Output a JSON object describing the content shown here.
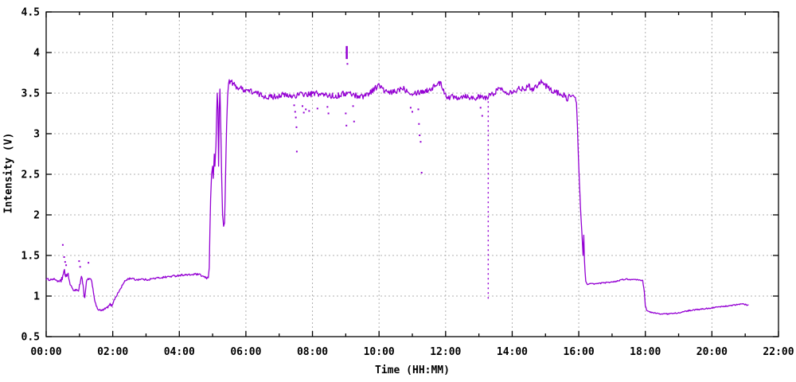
{
  "chart_data": {
    "type": "line",
    "title": "",
    "xlabel": "Time (HH:MM)",
    "ylabel": "Intensity (V)",
    "xlim_hours": [
      0,
      22
    ],
    "ylim": [
      0.5,
      4.5
    ],
    "grid": true,
    "legend": "none",
    "series_color": "#9400d3",
    "grid_color": "#b0b0b0",
    "border_color": "#000000",
    "x_ticks_major": [
      {
        "t": 0,
        "label": "00:00"
      },
      {
        "t": 2,
        "label": "02:00"
      },
      {
        "t": 4,
        "label": "04:00"
      },
      {
        "t": 6,
        "label": "06:00"
      },
      {
        "t": 8,
        "label": "08:00"
      },
      {
        "t": 10,
        "label": "10:00"
      },
      {
        "t": 12,
        "label": "12:00"
      },
      {
        "t": 14,
        "label": "14:00"
      },
      {
        "t": 16,
        "label": "16:00"
      },
      {
        "t": 18,
        "label": "18:00"
      },
      {
        "t": 20,
        "label": "20:00"
      },
      {
        "t": 22,
        "label": "22:00"
      }
    ],
    "x_ticks_minor": [
      1,
      3,
      5,
      7,
      9,
      11,
      13,
      15,
      17,
      19,
      21
    ],
    "y_ticks_major": [
      {
        "v": 0.5,
        "label": "0.5"
      },
      {
        "v": 1,
        "label": "1"
      },
      {
        "v": 1.5,
        "label": "1.5"
      },
      {
        "v": 2,
        "label": "2"
      },
      {
        "v": 2.5,
        "label": "2.5"
      },
      {
        "v": 3,
        "label": "3"
      },
      {
        "v": 3.5,
        "label": "3.5"
      },
      {
        "v": 4,
        "label": "4"
      },
      {
        "v": 4.5,
        "label": "4.5"
      }
    ],
    "main_series_anchors": [
      [
        0,
        1.21
      ],
      [
        0.1,
        1.2
      ],
      [
        0.2,
        1.21
      ],
      [
        0.3,
        1.2
      ],
      [
        0.38,
        1.17
      ],
      [
        0.45,
        1.2
      ],
      [
        0.5,
        1.25
      ],
      [
        0.55,
        1.28
      ],
      [
        0.62,
        1.26
      ],
      [
        0.68,
        1.22
      ],
      [
        0.72,
        1.15
      ],
      [
        0.78,
        1.09
      ],
      [
        0.85,
        1.07
      ],
      [
        0.92,
        1.08
      ],
      [
        0.97,
        1.06
      ],
      [
        1.0,
        1.12
      ],
      [
        1.04,
        1.21
      ],
      [
        1.08,
        1.22
      ],
      [
        1.11,
        1.15
      ],
      [
        1.14,
        1.0
      ],
      [
        1.16,
        0.97
      ],
      [
        1.18,
        1.05
      ],
      [
        1.21,
        1.18
      ],
      [
        1.26,
        1.21
      ],
      [
        1.32,
        1.21
      ],
      [
        1.37,
        1.18
      ],
      [
        1.42,
        1.05
      ],
      [
        1.47,
        0.92
      ],
      [
        1.52,
        0.86
      ],
      [
        1.58,
        0.83
      ],
      [
        1.65,
        0.82
      ],
      [
        1.72,
        0.83
      ],
      [
        1.8,
        0.85
      ],
      [
        1.87,
        0.87
      ],
      [
        1.92,
        0.9
      ],
      [
        1.97,
        0.88
      ],
      [
        2.02,
        0.93
      ],
      [
        2.08,
        0.98
      ],
      [
        2.15,
        1.03
      ],
      [
        2.22,
        1.08
      ],
      [
        2.3,
        1.14
      ],
      [
        2.38,
        1.19
      ],
      [
        2.45,
        1.21
      ],
      [
        2.55,
        1.22
      ],
      [
        2.7,
        1.2
      ],
      [
        2.85,
        1.21
      ],
      [
        3.0,
        1.2
      ],
      [
        3.15,
        1.21
      ],
      [
        3.3,
        1.22
      ],
      [
        3.5,
        1.23
      ],
      [
        3.7,
        1.24
      ],
      [
        3.9,
        1.25
      ],
      [
        4.1,
        1.26
      ],
      [
        4.3,
        1.26
      ],
      [
        4.5,
        1.27
      ],
      [
        4.62,
        1.26
      ],
      [
        4.72,
        1.24
      ],
      [
        4.82,
        1.22
      ],
      [
        4.87,
        1.23
      ],
      [
        4.9,
        1.35
      ],
      [
        4.92,
        1.8
      ],
      [
        4.94,
        2.2
      ],
      [
        4.97,
        2.5
      ],
      [
        5.0,
        2.6
      ],
      [
        5.02,
        2.45
      ],
      [
        5.05,
        2.75
      ],
      [
        5.07,
        2.6
      ],
      [
        5.1,
        2.85
      ],
      [
        5.12,
        3.2
      ],
      [
        5.14,
        3.5
      ],
      [
        5.16,
        3.3
      ],
      [
        5.18,
        2.6
      ],
      [
        5.2,
        3.3
      ],
      [
        5.22,
        3.55
      ],
      [
        5.24,
        3.2
      ],
      [
        5.27,
        2.5
      ],
      [
        5.3,
        2.0
      ],
      [
        5.33,
        1.86
      ],
      [
        5.36,
        1.9
      ],
      [
        5.39,
        2.5
      ],
      [
        5.42,
        3.1
      ],
      [
        5.45,
        3.45
      ],
      [
        5.48,
        3.62
      ],
      [
        5.52,
        3.65
      ],
      [
        5.58,
        3.63
      ],
      [
        5.65,
        3.6
      ],
      [
        5.75,
        3.57
      ],
      [
        5.9,
        3.55
      ],
      [
        6.1,
        3.53
      ],
      [
        6.3,
        3.5
      ],
      [
        6.5,
        3.47
      ],
      [
        6.7,
        3.45
      ],
      [
        6.9,
        3.46
      ],
      [
        7.1,
        3.48
      ],
      [
        7.3,
        3.46
      ],
      [
        7.5,
        3.47
      ],
      [
        7.7,
        3.49
      ],
      [
        7.9,
        3.48
      ],
      [
        8.1,
        3.5
      ],
      [
        8.3,
        3.48
      ],
      [
        8.5,
        3.47
      ],
      [
        8.7,
        3.46
      ],
      [
        8.9,
        3.49
      ],
      [
        9.1,
        3.5
      ],
      [
        9.3,
        3.47
      ],
      [
        9.5,
        3.46
      ],
      [
        9.7,
        3.5
      ],
      [
        9.85,
        3.55
      ],
      [
        10.0,
        3.6
      ],
      [
        10.15,
        3.53
      ],
      [
        10.3,
        3.5
      ],
      [
        10.5,
        3.52
      ],
      [
        10.7,
        3.57
      ],
      [
        10.85,
        3.53
      ],
      [
        11.0,
        3.5
      ],
      [
        11.15,
        3.51
      ],
      [
        11.3,
        3.52
      ],
      [
        11.5,
        3.54
      ],
      [
        11.65,
        3.58
      ],
      [
        11.78,
        3.63
      ],
      [
        11.88,
        3.6
      ],
      [
        11.98,
        3.5
      ],
      [
        12.08,
        3.44
      ],
      [
        12.2,
        3.46
      ],
      [
        12.4,
        3.45
      ],
      [
        12.6,
        3.47
      ],
      [
        12.8,
        3.44
      ],
      [
        13.0,
        3.45
      ],
      [
        13.2,
        3.44
      ],
      [
        13.35,
        3.47
      ],
      [
        13.5,
        3.52
      ],
      [
        13.62,
        3.56
      ],
      [
        13.75,
        3.53
      ],
      [
        13.9,
        3.51
      ],
      [
        14.05,
        3.53
      ],
      [
        14.2,
        3.55
      ],
      [
        14.35,
        3.56
      ],
      [
        14.5,
        3.58
      ],
      [
        14.62,
        3.55
      ],
      [
        14.75,
        3.6
      ],
      [
        14.85,
        3.65
      ],
      [
        14.95,
        3.61
      ],
      [
        15.1,
        3.56
      ],
      [
        15.25,
        3.52
      ],
      [
        15.4,
        3.5
      ],
      [
        15.55,
        3.47
      ],
      [
        15.65,
        3.43
      ],
      [
        15.72,
        3.47
      ],
      [
        15.8,
        3.46
      ],
      [
        15.88,
        3.44
      ],
      [
        15.93,
        3.38
      ],
      [
        15.96,
        3.1
      ],
      [
        15.99,
        2.7
      ],
      [
        16.02,
        2.4
      ],
      [
        16.05,
        2.1
      ],
      [
        16.09,
        1.8
      ],
      [
        16.13,
        1.5
      ],
      [
        16.15,
        1.75
      ],
      [
        16.17,
        1.45
      ],
      [
        16.19,
        1.3
      ],
      [
        16.21,
        1.18
      ],
      [
        16.26,
        1.14
      ],
      [
        16.32,
        1.15
      ],
      [
        16.5,
        1.15
      ],
      [
        16.7,
        1.16
      ],
      [
        16.9,
        1.17
      ],
      [
        17.1,
        1.18
      ],
      [
        17.3,
        1.2
      ],
      [
        17.45,
        1.21
      ],
      [
        17.55,
        1.2
      ],
      [
        17.75,
        1.2
      ],
      [
        17.92,
        1.19
      ],
      [
        17.97,
        1.05
      ],
      [
        18.0,
        0.88
      ],
      [
        18.05,
        0.82
      ],
      [
        18.15,
        0.8
      ],
      [
        18.3,
        0.79
      ],
      [
        18.5,
        0.78
      ],
      [
        18.7,
        0.78
      ],
      [
        18.9,
        0.79
      ],
      [
        19.1,
        0.8
      ],
      [
        19.3,
        0.82
      ],
      [
        19.5,
        0.83
      ],
      [
        19.7,
        0.84
      ],
      [
        19.9,
        0.85
      ],
      [
        20.1,
        0.86
      ],
      [
        20.3,
        0.87
      ],
      [
        20.5,
        0.88
      ],
      [
        20.7,
        0.89
      ],
      [
        20.85,
        0.9
      ],
      [
        20.95,
        0.9
      ],
      [
        21.05,
        0.89
      ],
      [
        21.1,
        0.89
      ]
    ],
    "noise_segments": [
      [
        0,
        4.87,
        0.012
      ],
      [
        0.45,
        0.68,
        0.05
      ],
      [
        1.0,
        1.12,
        0.04
      ],
      [
        5.5,
        15.9,
        0.035
      ],
      [
        16.32,
        21.1,
        0.007
      ]
    ],
    "scatter_points": [
      [
        0.5,
        1.63
      ],
      [
        0.54,
        1.48
      ],
      [
        0.57,
        1.42
      ],
      [
        0.6,
        1.38
      ],
      [
        0.99,
        1.43
      ],
      [
        1.02,
        1.36
      ],
      [
        1.27,
        1.41
      ],
      [
        7.45,
        3.35
      ],
      [
        7.48,
        3.27
      ],
      [
        7.5,
        3.2
      ],
      [
        7.52,
        3.08
      ],
      [
        7.53,
        2.78
      ],
      [
        7.7,
        3.34
      ],
      [
        7.74,
        3.26
      ],
      [
        7.8,
        3.3
      ],
      [
        7.9,
        3.28
      ],
      [
        8.15,
        3.31
      ],
      [
        8.45,
        3.33
      ],
      [
        8.48,
        3.25
      ],
      [
        9.0,
        3.25
      ],
      [
        9.02,
        3.1
      ],
      [
        9.05,
        3.86
      ],
      [
        9.22,
        3.34
      ],
      [
        9.25,
        3.15
      ],
      [
        10.95,
        3.32
      ],
      [
        11.0,
        3.27
      ],
      [
        11.18,
        3.3
      ],
      [
        11.2,
        3.12
      ],
      [
        11.22,
        2.98
      ],
      [
        11.25,
        2.9
      ],
      [
        11.28,
        2.52
      ],
      [
        13.05,
        3.32
      ],
      [
        13.1,
        3.22
      ]
    ],
    "vertical_segments": [
      {
        "t": 9.03,
        "v_from": 3.92,
        "v_to": 4.08,
        "style": "solid",
        "width": 2.5
      },
      {
        "t": 13.28,
        "v_from": 3.4,
        "v_to": 0.95,
        "style": "dashed",
        "width": 1.4
      }
    ]
  }
}
